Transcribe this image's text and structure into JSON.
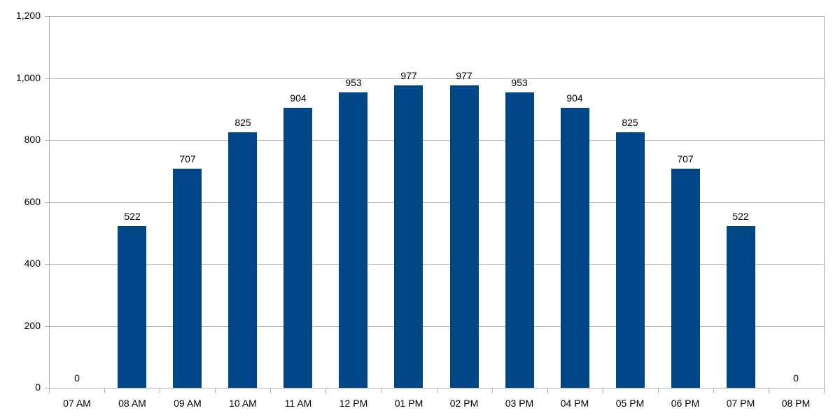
{
  "chart_data": {
    "type": "bar",
    "title": "",
    "xlabel": "",
    "ylabel": "",
    "categories": [
      "07 AM",
      "08 AM",
      "09 AM",
      "10 AM",
      "11 AM",
      "12 PM",
      "01 PM",
      "02 PM",
      "03 PM",
      "04 PM",
      "05 PM",
      "06 PM",
      "07 PM",
      "08 PM"
    ],
    "values": [
      0,
      522,
      707,
      825,
      904,
      953,
      977,
      977,
      953,
      904,
      825,
      707,
      522,
      0
    ],
    "value_labels": [
      "0",
      "522",
      "707",
      "825",
      "904",
      "953",
      "977",
      "977",
      "953",
      "904",
      "825",
      "707",
      "522",
      "0"
    ],
    "ylim": [
      0,
      1200
    ],
    "yticks": [
      0,
      200,
      400,
      600,
      800,
      1000,
      1200
    ],
    "ytick_labels": [
      "0",
      "200",
      "400",
      "600",
      "800",
      "1,000",
      "1,200"
    ],
    "grid": true,
    "legend": null,
    "bar_color": "#004586",
    "grid_color": "#b3b3b3"
  }
}
